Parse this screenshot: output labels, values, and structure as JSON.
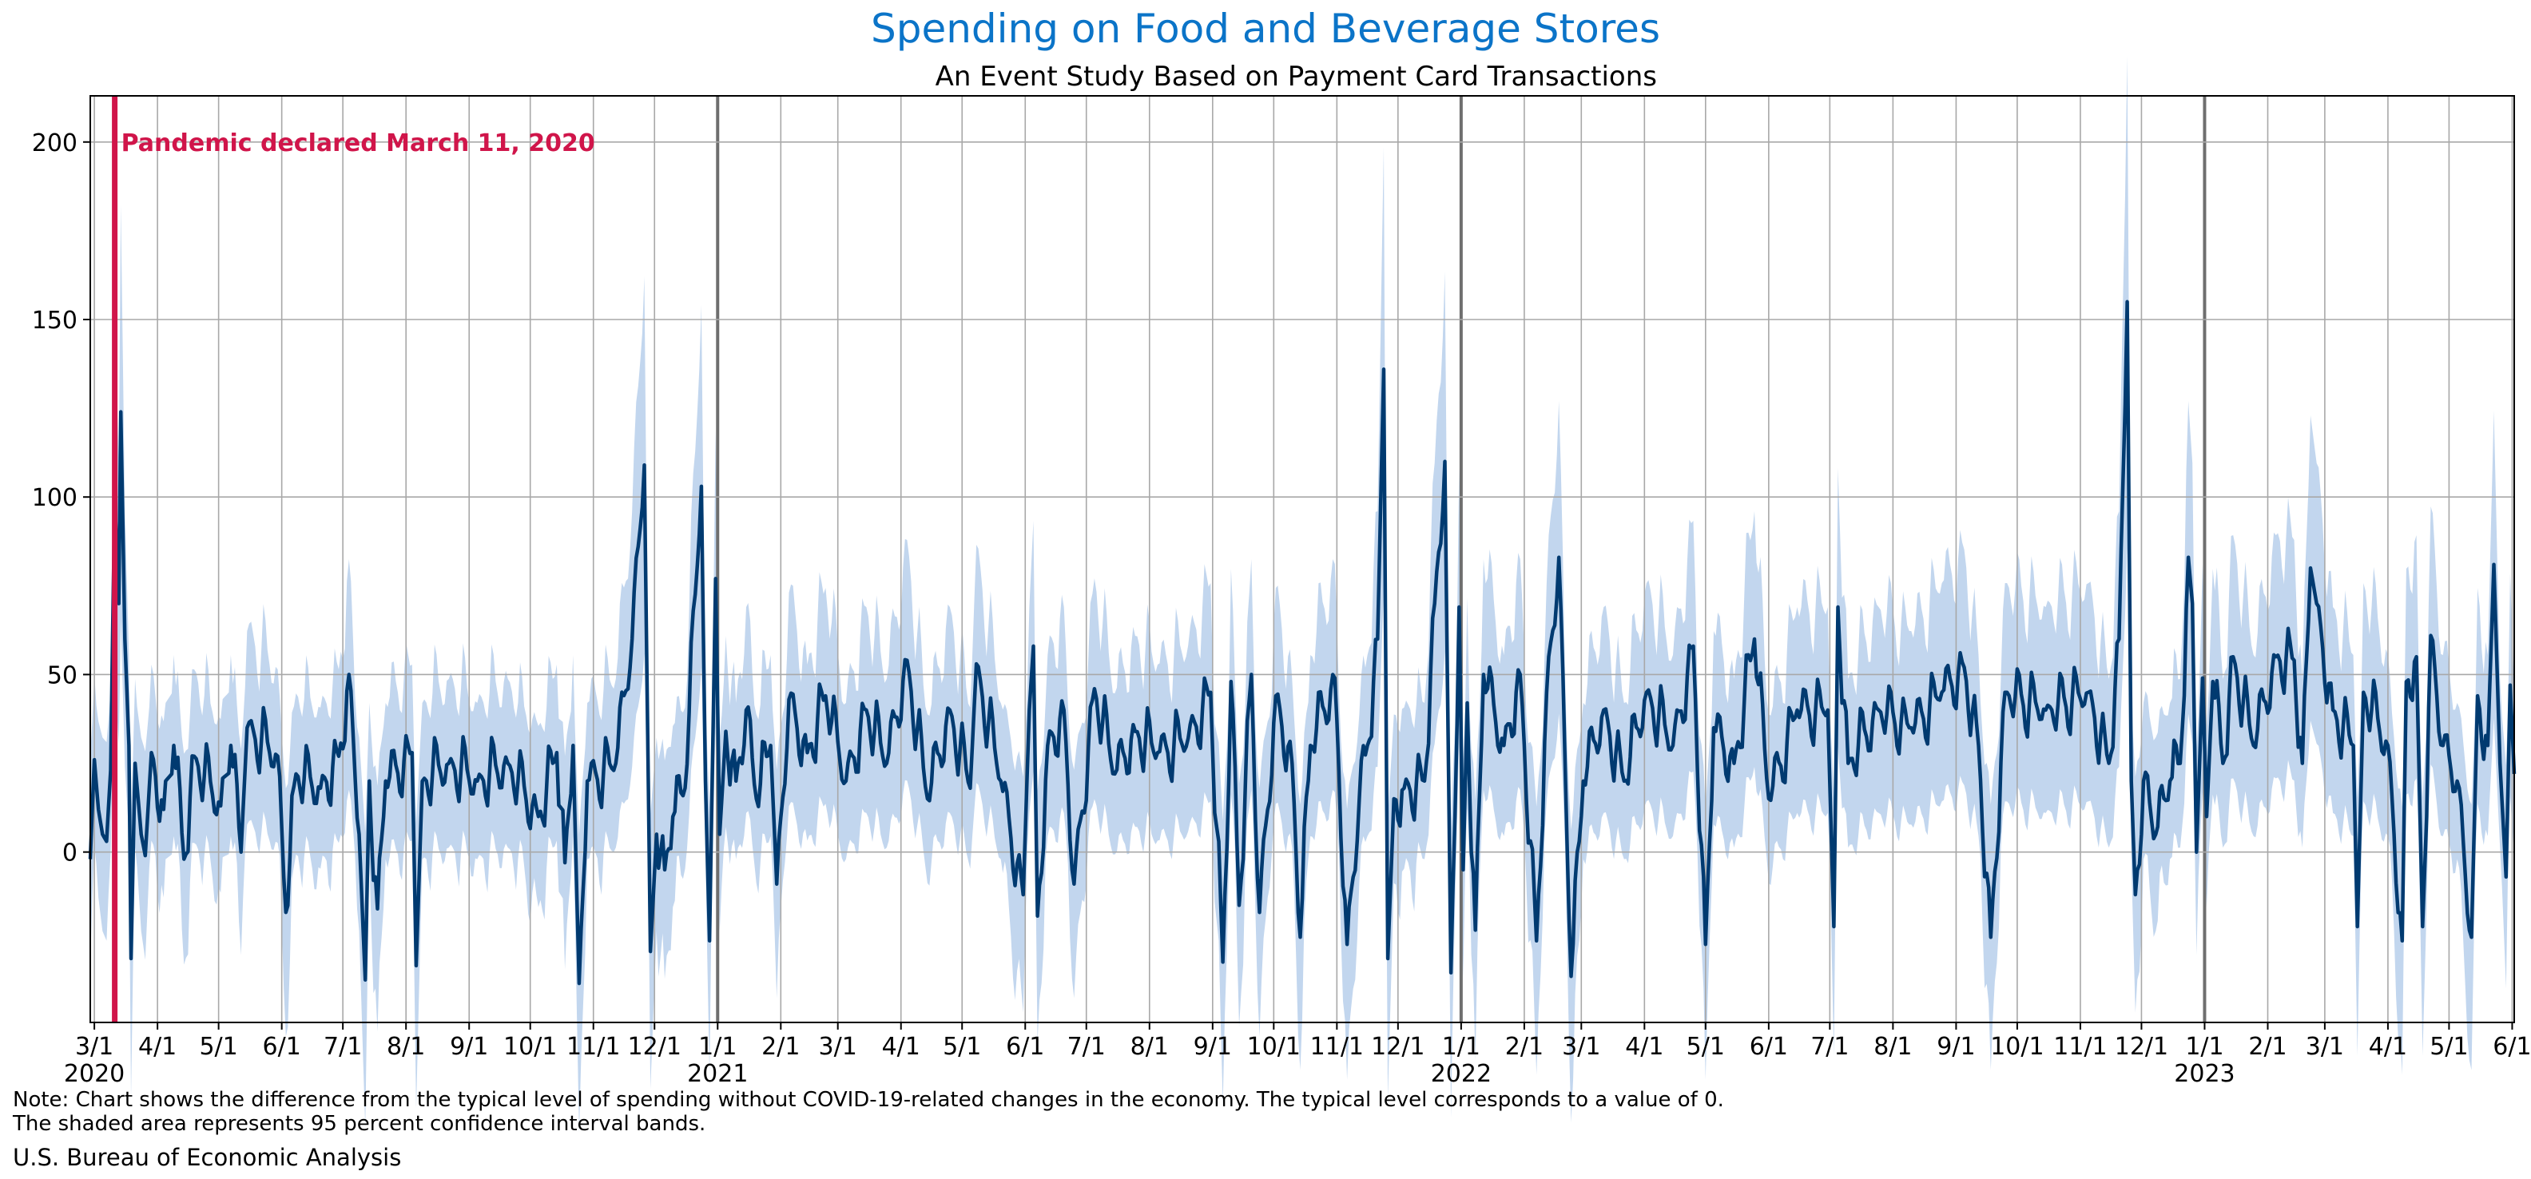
{
  "chart_data": {
    "type": "line",
    "title": "Spending on Food and Beverage Stores",
    "subtitle": "An Event Study Based on Payment Card Transactions",
    "xlabel": "",
    "ylabel": "",
    "x_range": [
      "2020-02-28",
      "2023-06-02"
    ],
    "ylim": [
      -48,
      213
    ],
    "yticks": [
      0,
      50,
      100,
      150,
      200
    ],
    "grid": true,
    "legend": "none",
    "month_ticks": [
      {
        "date": "2020-03-01",
        "label": "3/1"
      },
      {
        "date": "2020-04-01",
        "label": "4/1"
      },
      {
        "date": "2020-05-01",
        "label": "5/1"
      },
      {
        "date": "2020-06-01",
        "label": "6/1"
      },
      {
        "date": "2020-07-01",
        "label": "7/1"
      },
      {
        "date": "2020-08-01",
        "label": "8/1"
      },
      {
        "date": "2020-09-01",
        "label": "9/1"
      },
      {
        "date": "2020-10-01",
        "label": "10/1"
      },
      {
        "date": "2020-11-01",
        "label": "11/1"
      },
      {
        "date": "2020-12-01",
        "label": "12/1"
      },
      {
        "date": "2021-01-01",
        "label": "1/1"
      },
      {
        "date": "2021-02-01",
        "label": "2/1"
      },
      {
        "date": "2021-03-01",
        "label": "3/1"
      },
      {
        "date": "2021-04-01",
        "label": "4/1"
      },
      {
        "date": "2021-05-01",
        "label": "5/1"
      },
      {
        "date": "2021-06-01",
        "label": "6/1"
      },
      {
        "date": "2021-07-01",
        "label": "7/1"
      },
      {
        "date": "2021-08-01",
        "label": "8/1"
      },
      {
        "date": "2021-09-01",
        "label": "9/1"
      },
      {
        "date": "2021-10-01",
        "label": "10/1"
      },
      {
        "date": "2021-11-01",
        "label": "11/1"
      },
      {
        "date": "2021-12-01",
        "label": "12/1"
      },
      {
        "date": "2022-01-01",
        "label": "1/1"
      },
      {
        "date": "2022-02-01",
        "label": "2/1"
      },
      {
        "date": "2022-03-01",
        "label": "3/1"
      },
      {
        "date": "2022-04-01",
        "label": "4/1"
      },
      {
        "date": "2022-05-01",
        "label": "5/1"
      },
      {
        "date": "2022-06-01",
        "label": "6/1"
      },
      {
        "date": "2022-07-01",
        "label": "7/1"
      },
      {
        "date": "2022-08-01",
        "label": "8/1"
      },
      {
        "date": "2022-09-01",
        "label": "9/1"
      },
      {
        "date": "2022-10-01",
        "label": "10/1"
      },
      {
        "date": "2022-11-01",
        "label": "11/1"
      },
      {
        "date": "2022-12-01",
        "label": "12/1"
      },
      {
        "date": "2023-01-01",
        "label": "1/1"
      },
      {
        "date": "2023-02-01",
        "label": "2/1"
      },
      {
        "date": "2023-03-01",
        "label": "3/1"
      },
      {
        "date": "2023-04-01",
        "label": "4/1"
      },
      {
        "date": "2023-05-01",
        "label": "5/1"
      },
      {
        "date": "2023-06-01",
        "label": "6/1"
      }
    ],
    "year_ticks": [
      {
        "date": "2020-03-01",
        "label": "2020"
      },
      {
        "date": "2021-01-01",
        "label": "2021"
      },
      {
        "date": "2022-01-01",
        "label": "2022"
      },
      {
        "date": "2023-01-01",
        "label": "2023"
      }
    ],
    "event": {
      "date": "2020-03-11",
      "label": "Pandemic declared March 11, 2020",
      "color": "#d0154a"
    },
    "series": [
      {
        "role": "estimate",
        "color": "#003a70",
        "points": [
          [
            "2020-02-28",
            -2
          ],
          [
            "2020-03-01",
            26
          ],
          [
            "2020-03-03",
            12
          ],
          [
            "2020-03-05",
            5
          ],
          [
            "2020-03-07",
            3
          ],
          [
            "2020-03-09",
            23
          ],
          [
            "2020-03-11",
            100
          ],
          [
            "2020-03-13",
            70
          ],
          [
            "2020-03-14",
            124
          ],
          [
            "2020-03-16",
            60
          ],
          [
            "2020-03-18",
            30
          ],
          [
            "2020-03-19",
            -30
          ],
          [
            "2020-03-21",
            25
          ],
          [
            "2020-03-24",
            5
          ],
          [
            "2020-03-26",
            -1
          ],
          [
            "2020-03-29",
            28
          ],
          [
            "2020-04-04",
            12
          ],
          [
            "2020-04-09",
            30
          ],
          [
            "2020-04-14",
            -2
          ],
          [
            "2020-04-19",
            27
          ],
          [
            "2020-05-02",
            13
          ],
          [
            "2020-05-07",
            30
          ],
          [
            "2020-05-12",
            0
          ],
          [
            "2020-05-15",
            35
          ],
          [
            "2020-05-30",
            27
          ],
          [
            "2020-06-03",
            -17
          ],
          [
            "2020-06-08",
            22
          ],
          [
            "2020-06-20",
            18
          ],
          [
            "2020-06-29",
            27
          ],
          [
            "2020-07-04",
            50
          ],
          [
            "2020-07-09",
            5
          ],
          [
            "2020-07-12",
            -36
          ],
          [
            "2020-07-14",
            20
          ],
          [
            "2020-07-18",
            -16
          ],
          [
            "2020-07-22",
            20
          ],
          [
            "2020-08-04",
            28
          ],
          [
            "2020-08-06",
            -32
          ],
          [
            "2020-08-09",
            20
          ],
          [
            "2020-08-22",
            25
          ],
          [
            "2020-09-05",
            20
          ],
          [
            "2020-09-20",
            25
          ],
          [
            "2020-10-05",
            10
          ],
          [
            "2020-10-14",
            28
          ],
          [
            "2020-10-18",
            -3
          ],
          [
            "2020-10-22",
            30
          ],
          [
            "2020-10-25",
            -37
          ],
          [
            "2020-10-29",
            20
          ],
          [
            "2020-11-12",
            25
          ],
          [
            "2020-11-20",
            60
          ],
          [
            "2020-11-26",
            109
          ],
          [
            "2020-11-29",
            -28
          ],
          [
            "2020-12-02",
            5
          ],
          [
            "2020-12-06",
            -5
          ],
          [
            "2020-12-10",
            10
          ],
          [
            "2020-12-16",
            18
          ],
          [
            "2020-12-24",
            103
          ],
          [
            "2020-12-26",
            20
          ],
          [
            "2020-12-28",
            -25
          ],
          [
            "2020-12-31",
            77
          ],
          [
            "2021-01-02",
            5
          ],
          [
            "2021-01-05",
            34
          ],
          [
            "2021-01-10",
            20
          ],
          [
            "2021-01-15",
            40
          ],
          [
            "2021-01-20",
            15
          ],
          [
            "2021-01-27",
            30
          ],
          [
            "2021-01-30",
            -9
          ],
          [
            "2021-02-05",
            43
          ],
          [
            "2021-02-14",
            28
          ],
          [
            "2021-02-23",
            44
          ],
          [
            "2021-03-05",
            20
          ],
          [
            "2021-03-15",
            40
          ],
          [
            "2021-03-25",
            25
          ],
          [
            "2021-04-04",
            54
          ],
          [
            "2021-04-14",
            15
          ],
          [
            "2021-04-25",
            40
          ],
          [
            "2021-05-05",
            18
          ],
          [
            "2021-05-08",
            53
          ],
          [
            "2021-05-20",
            20
          ],
          [
            "2021-05-31",
            -12
          ],
          [
            "2021-06-03",
            40
          ],
          [
            "2021-06-05",
            58
          ],
          [
            "2021-06-07",
            -18
          ],
          [
            "2021-06-12",
            30
          ],
          [
            "2021-06-20",
            40
          ],
          [
            "2021-06-25",
            -9
          ],
          [
            "2021-07-05",
            46
          ],
          [
            "2021-07-15",
            22
          ],
          [
            "2021-07-25",
            34
          ],
          [
            "2021-08-05",
            28
          ],
          [
            "2021-08-20",
            32
          ],
          [
            "2021-08-31",
            45
          ],
          [
            "2021-09-06",
            -31
          ],
          [
            "2021-09-10",
            48
          ],
          [
            "2021-09-14",
            -15
          ],
          [
            "2021-09-20",
            50
          ],
          [
            "2021-09-24",
            -17
          ],
          [
            "2021-10-02",
            44
          ],
          [
            "2021-10-10",
            25
          ],
          [
            "2021-10-14",
            -24
          ],
          [
            "2021-10-19",
            30
          ],
          [
            "2021-10-31",
            49
          ],
          [
            "2021-11-06",
            -26
          ],
          [
            "2021-11-12",
            15
          ],
          [
            "2021-11-16",
            30
          ],
          [
            "2021-11-21",
            60
          ],
          [
            "2021-11-24",
            136
          ],
          [
            "2021-11-26",
            -30
          ],
          [
            "2021-11-29",
            15
          ],
          [
            "2021-12-04",
            18
          ],
          [
            "2021-12-14",
            20
          ],
          [
            "2021-12-19",
            70
          ],
          [
            "2021-12-24",
            110
          ],
          [
            "2021-12-27",
            -34
          ],
          [
            "2021-12-31",
            69
          ],
          [
            "2022-01-02",
            -5
          ],
          [
            "2022-01-04",
            42
          ],
          [
            "2022-01-08",
            -22
          ],
          [
            "2022-01-12",
            50
          ],
          [
            "2022-01-22",
            30
          ],
          [
            "2022-01-30",
            50
          ],
          [
            "2022-02-07",
            -25
          ],
          [
            "2022-02-12",
            45
          ],
          [
            "2022-02-18",
            83
          ],
          [
            "2022-02-24",
            -35
          ],
          [
            "2022-03-02",
            20
          ],
          [
            "2022-03-12",
            40
          ],
          [
            "2022-03-22",
            20
          ],
          [
            "2022-04-02",
            45
          ],
          [
            "2022-04-15",
            30
          ],
          [
            "2022-04-25",
            58
          ],
          [
            "2022-05-01",
            -26
          ],
          [
            "2022-05-05",
            35
          ],
          [
            "2022-05-15",
            25
          ],
          [
            "2022-05-25",
            60
          ],
          [
            "2022-06-01",
            15
          ],
          [
            "2022-06-15",
            40
          ],
          [
            "2022-06-30",
            40
          ],
          [
            "2022-07-03",
            -21
          ],
          [
            "2022-07-05",
            69
          ],
          [
            "2022-07-10",
            25
          ],
          [
            "2022-07-25",
            40
          ],
          [
            "2022-08-10",
            35
          ],
          [
            "2022-08-25",
            45
          ],
          [
            "2022-09-05",
            52
          ],
          [
            "2022-09-12",
            30
          ],
          [
            "2022-09-18",
            -24
          ],
          [
            "2022-09-25",
            45
          ],
          [
            "2022-10-15",
            40
          ],
          [
            "2022-11-05",
            45
          ],
          [
            "2022-11-15",
            25
          ],
          [
            "2022-11-20",
            60
          ],
          [
            "2022-11-24",
            155
          ],
          [
            "2022-11-26",
            20
          ],
          [
            "2022-11-28",
            -12
          ],
          [
            "2022-12-02",
            20
          ],
          [
            "2022-12-08",
            5
          ],
          [
            "2022-12-15",
            20
          ],
          [
            "2022-12-20",
            25
          ],
          [
            "2022-12-24",
            83
          ],
          [
            "2022-12-26",
            70
          ],
          [
            "2022-12-28",
            0
          ],
          [
            "2022-12-31",
            49
          ],
          [
            "2023-01-02",
            10
          ],
          [
            "2023-01-05",
            48
          ],
          [
            "2023-01-10",
            25
          ],
          [
            "2023-01-15",
            55
          ],
          [
            "2023-01-25",
            30
          ],
          [
            "2023-02-05",
            55
          ],
          [
            "2023-02-14",
            54
          ],
          [
            "2023-02-18",
            25
          ],
          [
            "2023-02-22",
            80
          ],
          [
            "2023-02-25",
            70
          ],
          [
            "2023-03-05",
            40
          ],
          [
            "2023-03-15",
            30
          ],
          [
            "2023-03-17",
            -21
          ],
          [
            "2023-03-20",
            45
          ],
          [
            "2023-04-01",
            30
          ],
          [
            "2023-04-08",
            -25
          ],
          [
            "2023-04-10",
            48
          ],
          [
            "2023-04-15",
            55
          ],
          [
            "2023-04-18",
            -21
          ],
          [
            "2023-04-22",
            61
          ],
          [
            "2023-04-28",
            30
          ],
          [
            "2023-05-05",
            20
          ],
          [
            "2023-05-12",
            -24
          ],
          [
            "2023-05-15",
            44
          ],
          [
            "2023-05-20",
            30
          ],
          [
            "2023-05-23",
            81
          ],
          [
            "2023-05-26",
            25
          ],
          [
            "2023-05-29",
            -7
          ],
          [
            "2023-05-31",
            47
          ],
          [
            "2023-06-02",
            22
          ]
        ]
      }
    ]
  },
  "note": {
    "line1": "Note: Chart shows the difference from the typical level of spending without COVID-19-related changes in the economy. The typical level corresponds to a value of 0.",
    "line2": "The shaded area represents 95 percent confidence interval bands."
  },
  "source": "U.S. Bureau of Economic Analysis",
  "colors": {
    "title": "#0b74c8",
    "line": "#003a70",
    "band": "#c2d6ee",
    "event": "#d0154a",
    "grid": "#a8a8a8",
    "year_grid": "#6e6e6e"
  }
}
